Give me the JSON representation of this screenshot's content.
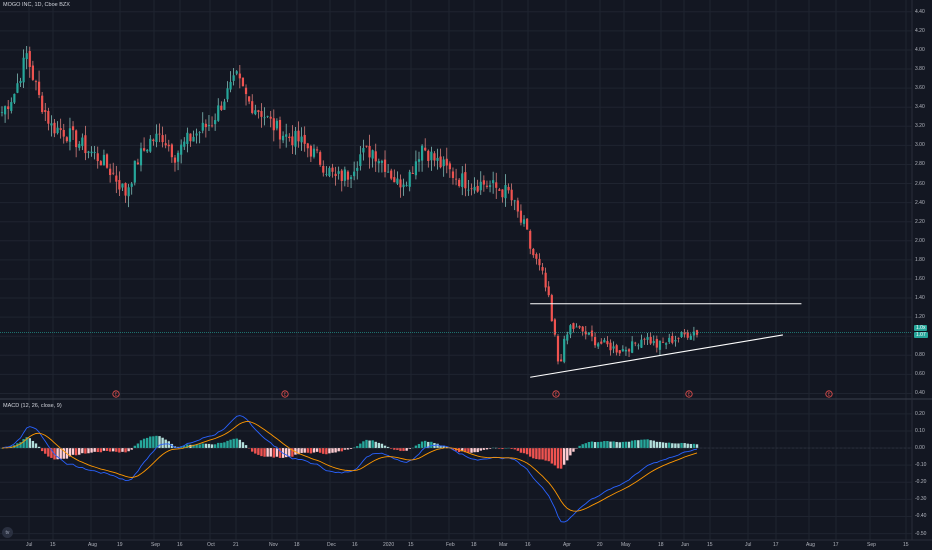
{
  "chart_data": [
    {
      "type": "candlestick",
      "title": "MOGO INC, 1D, Cboe BZX",
      "y_ticks": [
        "4.40",
        "4.20",
        "4.00",
        "3.80",
        "3.60",
        "3.40",
        "3.20",
        "3.00",
        "2.80",
        "2.60",
        "2.40",
        "2.20",
        "2.00",
        "1.80",
        "1.60",
        "1.40",
        "1.20",
        "1.00",
        "0.80",
        "0.60",
        "0.40"
      ],
      "ylim": [
        0.3,
        4.45
      ],
      "last_price": "1.0x",
      "last_price_2": "1.07",
      "colors": {
        "up": "#26a69a",
        "down": "#ef5350",
        "wick_up": "#8fd3cc",
        "wick_down": "#f28b87",
        "background": "#131722",
        "trendline": "#ffffff"
      },
      "events": [
        "E",
        "E",
        "E",
        "E",
        "E"
      ],
      "event_positions_x": [
        116,
        285,
        556,
        689,
        829
      ],
      "anchor_candles": [
        [
          0,
          3.35
        ],
        [
          4,
          3.55
        ],
        [
          8,
          3.95
        ],
        [
          12,
          3.5
        ],
        [
          16,
          3.2
        ],
        [
          20,
          3.15
        ],
        [
          24,
          3.05
        ],
        [
          28,
          2.95
        ],
        [
          32,
          2.85
        ],
        [
          36,
          2.7
        ],
        [
          40,
          2.5
        ],
        [
          44,
          2.85
        ],
        [
          48,
          3.05
        ],
        [
          52,
          3.1
        ],
        [
          56,
          2.9
        ],
        [
          60,
          3.05
        ],
        [
          64,
          3.15
        ],
        [
          68,
          3.25
        ],
        [
          72,
          3.5
        ],
        [
          76,
          3.7
        ],
        [
          80,
          3.45
        ],
        [
          84,
          3.35
        ],
        [
          88,
          3.2
        ],
        [
          92,
          3.1
        ],
        [
          96,
          3.05
        ],
        [
          100,
          2.95
        ],
        [
          104,
          2.8
        ],
        [
          108,
          2.65
        ],
        [
          112,
          2.7
        ],
        [
          116,
          2.9
        ],
        [
          120,
          2.95
        ],
        [
          124,
          2.8
        ],
        [
          128,
          2.6
        ],
        [
          132,
          2.7
        ],
        [
          136,
          3.0
        ],
        [
          140,
          2.85
        ],
        [
          144,
          2.75
        ],
        [
          148,
          2.65
        ],
        [
          152,
          2.6
        ],
        [
          156,
          2.6
        ],
        [
          160,
          2.55
        ],
        [
          164,
          2.5
        ],
        [
          168,
          2.2
        ],
        [
          172,
          1.85
        ],
        [
          176,
          1.5
        ],
        [
          180,
          0.75
        ],
        [
          184,
          1.1
        ],
        [
          188,
          1.05
        ],
        [
          192,
          0.95
        ],
        [
          196,
          0.9
        ],
        [
          200,
          0.85
        ],
        [
          204,
          0.9
        ],
        [
          208,
          1.0
        ],
        [
          212,
          0.9
        ],
        [
          216,
          0.95
        ],
        [
          220,
          1.0
        ],
        [
          224,
          1.05
        ]
      ],
      "trendlines": [
        {
          "name": "resistance",
          "p1": [
            171,
            1.34
          ],
          "p2": [
            241,
            1.34
          ]
        },
        {
          "name": "support",
          "p1": [
            171,
            0.57
          ],
          "p2": [
            235,
            0.95
          ]
        }
      ]
    },
    {
      "type": "macd",
      "title": "MACD (12, 26, close, 9)",
      "y_ticks": [
        "0.20",
        "0.10",
        "0.00",
        "-0.10",
        "-0.20",
        "-0.30",
        "-0.40",
        "-0.50"
      ],
      "ylim": [
        -0.52,
        0.24
      ],
      "colors": {
        "macd": "#2962ff",
        "signal": "#ff9800",
        "hist_up_strong": "#26a69a",
        "hist_up_weak": "#b2dfdb",
        "hist_down_strong": "#ef5350",
        "hist_down_weak": "#ffcdd2"
      }
    }
  ],
  "x_axis": {
    "labels": [
      "Jul",
      "15",
      "Aug",
      "19",
      "Sep",
      "16",
      "Oct",
      "21",
      "Nov",
      "18",
      "Dec",
      "16",
      "2020",
      "15",
      "Feb",
      "18",
      "Mar",
      "16",
      "Apr",
      "20",
      "May",
      "18",
      "Jun",
      "15",
      "Jul",
      "17",
      "Aug",
      "17",
      "Sep",
      "15"
    ],
    "label_x": [
      29,
      53,
      91,
      120,
      154,
      180,
      210,
      236,
      272,
      297,
      330,
      355,
      386,
      411,
      449,
      474,
      502,
      528,
      566,
      600,
      624,
      661,
      684,
      710,
      748,
      776,
      809,
      836,
      870,
      906
    ]
  },
  "watermark": "tv"
}
